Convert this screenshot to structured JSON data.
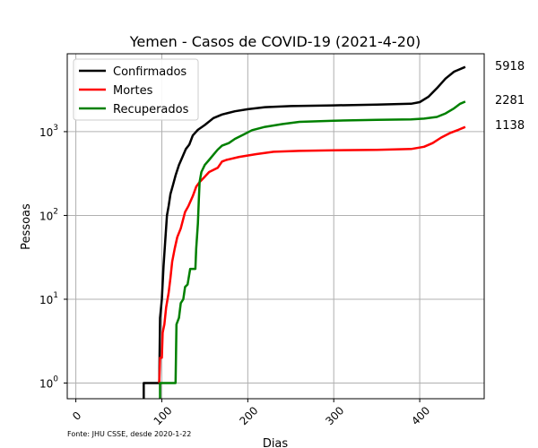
{
  "chart_data": {
    "type": "line",
    "title": "Yemen - Casos de COVID-19 (2021-4-20)",
    "xlabel": "Dias",
    "ylabel": "Pessoas",
    "source": "Fonte: JHU CSSE, desde 2020-1-22",
    "yscale": "log",
    "xlim": [
      -10,
      475
    ],
    "ylim": [
      0.65,
      8500
    ],
    "xticks": [
      0,
      100,
      200,
      300,
      400
    ],
    "yticks": [
      {
        "value": 1,
        "base": "10",
        "exp": "0"
      },
      {
        "value": 10,
        "base": "10",
        "exp": "1"
      },
      {
        "value": 100,
        "base": "10",
        "exp": "2"
      },
      {
        "value": 1000,
        "base": "10",
        "exp": "3"
      }
    ],
    "grid": true,
    "legend_position": "top-left",
    "end_labels": [
      "5918",
      "2281",
      "1138"
    ],
    "series": [
      {
        "name": "Confirmados",
        "color": "#000000",
        "points": [
          [
            79,
            0.6
          ],
          [
            79,
            1
          ],
          [
            97,
            1
          ],
          [
            98,
            6
          ],
          [
            100,
            10
          ],
          [
            102,
            25
          ],
          [
            104,
            50
          ],
          [
            106,
            100
          ],
          [
            108,
            130
          ],
          [
            110,
            180
          ],
          [
            113,
            230
          ],
          [
            116,
            300
          ],
          [
            120,
            400
          ],
          [
            124,
            500
          ],
          [
            128,
            620
          ],
          [
            132,
            700
          ],
          [
            136,
            900
          ],
          [
            142,
            1050
          ],
          [
            150,
            1200
          ],
          [
            160,
            1450
          ],
          [
            170,
            1600
          ],
          [
            185,
            1750
          ],
          [
            200,
            1850
          ],
          [
            220,
            1960
          ],
          [
            250,
            2020
          ],
          [
            300,
            2060
          ],
          [
            350,
            2100
          ],
          [
            390,
            2150
          ],
          [
            400,
            2250
          ],
          [
            410,
            2600
          ],
          [
            420,
            3300
          ],
          [
            430,
            4300
          ],
          [
            440,
            5200
          ],
          [
            453,
            5918
          ]
        ]
      },
      {
        "name": "Mortes",
        "color": "#ff0000",
        "points": [
          [
            97,
            1
          ],
          [
            98,
            2
          ],
          [
            100,
            2
          ],
          [
            101,
            4
          ],
          [
            103,
            5
          ],
          [
            105,
            8
          ],
          [
            108,
            12
          ],
          [
            110,
            18
          ],
          [
            112,
            28
          ],
          [
            115,
            40
          ],
          [
            118,
            55
          ],
          [
            122,
            70
          ],
          [
            127,
            110
          ],
          [
            131,
            130
          ],
          [
            136,
            170
          ],
          [
            140,
            220
          ],
          [
            144,
            250
          ],
          [
            150,
            290
          ],
          [
            155,
            330
          ],
          [
            165,
            370
          ],
          [
            170,
            440
          ],
          [
            175,
            460
          ],
          [
            190,
            500
          ],
          [
            210,
            540
          ],
          [
            230,
            575
          ],
          [
            260,
            590
          ],
          [
            300,
            600
          ],
          [
            350,
            605
          ],
          [
            390,
            620
          ],
          [
            405,
            660
          ],
          [
            415,
            730
          ],
          [
            425,
            850
          ],
          [
            435,
            960
          ],
          [
            445,
            1050
          ],
          [
            453,
            1138
          ]
        ]
      },
      {
        "name": "Recuperados",
        "color": "#008000",
        "points": [
          [
            98,
            0.6
          ],
          [
            98,
            1
          ],
          [
            116,
            1
          ],
          [
            117,
            5
          ],
          [
            120,
            6
          ],
          [
            122,
            9
          ],
          [
            125,
            10
          ],
          [
            127,
            14
          ],
          [
            130,
            15
          ],
          [
            133,
            23
          ],
          [
            139,
            23
          ],
          [
            140,
            40
          ],
          [
            142,
            80
          ],
          [
            143,
            150
          ],
          [
            144,
            250
          ],
          [
            146,
            330
          ],
          [
            150,
            400
          ],
          [
            155,
            460
          ],
          [
            160,
            530
          ],
          [
            165,
            610
          ],
          [
            170,
            680
          ],
          [
            178,
            730
          ],
          [
            185,
            820
          ],
          [
            195,
            920
          ],
          [
            205,
            1040
          ],
          [
            220,
            1140
          ],
          [
            240,
            1230
          ],
          [
            260,
            1310
          ],
          [
            300,
            1350
          ],
          [
            350,
            1380
          ],
          [
            390,
            1400
          ],
          [
            405,
            1430
          ],
          [
            420,
            1500
          ],
          [
            430,
            1650
          ],
          [
            440,
            1900
          ],
          [
            447,
            2150
          ],
          [
            453,
            2281
          ]
        ]
      }
    ]
  }
}
